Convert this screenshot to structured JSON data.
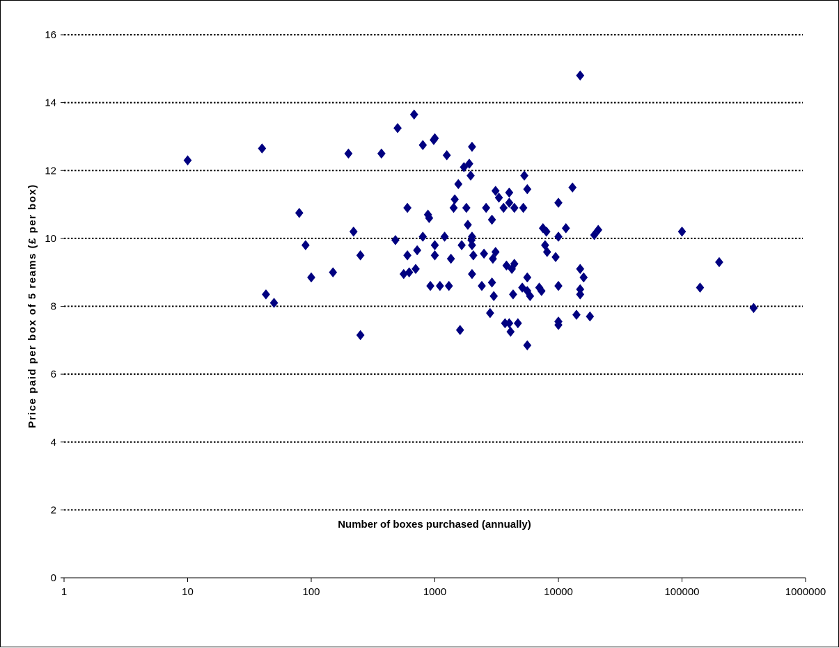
{
  "chart_data": {
    "type": "scatter",
    "xlabel": "Number of boxes purchased (annually)",
    "ylabel": "Price paid per box of 5 reams (£ per box)",
    "x_scale": "log",
    "xlim": [
      1,
      1000000
    ],
    "ylim": [
      0,
      16
    ],
    "x_ticks": [
      "1",
      "10",
      "100",
      "1000",
      "10000",
      "100000",
      "1000000"
    ],
    "y_ticks": [
      "0",
      "2",
      "4",
      "6",
      "8",
      "10",
      "12",
      "14",
      "16"
    ],
    "grid": "horizontal dotted",
    "legend": "none",
    "marker": "diamond",
    "marker_color": "#000080",
    "series": [
      {
        "points": [
          [
            10,
            12.3
          ],
          [
            40,
            12.65
          ],
          [
            43,
            8.35
          ],
          [
            50,
            8.1
          ],
          [
            80,
            10.75
          ],
          [
            90,
            9.8
          ],
          [
            100,
            8.85
          ],
          [
            150,
            9.0
          ],
          [
            200,
            12.5
          ],
          [
            220,
            10.2
          ],
          [
            250,
            7.15
          ],
          [
            250,
            9.5
          ],
          [
            370,
            12.5
          ],
          [
            480,
            9.95
          ],
          [
            500,
            13.25
          ],
          [
            560,
            8.95
          ],
          [
            600,
            10.9
          ],
          [
            600,
            9.5
          ],
          [
            620,
            9.0
          ],
          [
            680,
            13.65
          ],
          [
            700,
            9.1
          ],
          [
            720,
            9.65
          ],
          [
            800,
            12.75
          ],
          [
            800,
            10.05
          ],
          [
            880,
            10.7
          ],
          [
            900,
            10.6
          ],
          [
            920,
            8.6
          ],
          [
            980,
            12.9
          ],
          [
            1000,
            12.95
          ],
          [
            1000,
            9.8
          ],
          [
            1000,
            9.5
          ],
          [
            1100,
            8.6
          ],
          [
            1200,
            10.05
          ],
          [
            1250,
            12.45
          ],
          [
            1300,
            8.6
          ],
          [
            1350,
            9.4
          ],
          [
            1420,
            10.9
          ],
          [
            1450,
            11.15
          ],
          [
            1550,
            11.6
          ],
          [
            1600,
            7.3
          ],
          [
            1650,
            9.8
          ],
          [
            1720,
            12.1
          ],
          [
            1800,
            10.9
          ],
          [
            1850,
            10.4
          ],
          [
            1900,
            12.2
          ],
          [
            1950,
            11.85
          ],
          [
            1980,
            9.95
          ],
          [
            2000,
            12.7
          ],
          [
            2000,
            10.05
          ],
          [
            2000,
            9.8
          ],
          [
            2000,
            8.95
          ],
          [
            2050,
            9.5
          ],
          [
            2400,
            8.6
          ],
          [
            2500,
            9.55
          ],
          [
            2600,
            10.9
          ],
          [
            2800,
            7.8
          ],
          [
            2900,
            10.55
          ],
          [
            2900,
            8.7
          ],
          [
            2950,
            9.4
          ],
          [
            3000,
            8.3
          ],
          [
            3100,
            11.4
          ],
          [
            3100,
            9.6
          ],
          [
            3300,
            11.2
          ],
          [
            3600,
            10.9
          ],
          [
            3700,
            7.5
          ],
          [
            3800,
            9.2
          ],
          [
            4000,
            11.35
          ],
          [
            4000,
            11.05
          ],
          [
            4000,
            7.5
          ],
          [
            4100,
            7.25
          ],
          [
            4200,
            9.1
          ],
          [
            4300,
            8.35
          ],
          [
            4400,
            10.9
          ],
          [
            4400,
            9.25
          ],
          [
            4700,
            7.5
          ],
          [
            5100,
            8.55
          ],
          [
            5200,
            10.9
          ],
          [
            5300,
            11.85
          ],
          [
            5600,
            11.45
          ],
          [
            5600,
            8.85
          ],
          [
            5600,
            8.45
          ],
          [
            5600,
            6.85
          ],
          [
            5900,
            8.3
          ],
          [
            7000,
            8.55
          ],
          [
            7300,
            8.45
          ],
          [
            7500,
            10.3
          ],
          [
            7800,
            9.8
          ],
          [
            8000,
            10.2
          ],
          [
            8100,
            9.6
          ],
          [
            9500,
            9.45
          ],
          [
            10000,
            11.05
          ],
          [
            10000,
            10.05
          ],
          [
            10000,
            8.6
          ],
          [
            10000,
            7.55
          ],
          [
            10000,
            7.45
          ],
          [
            11500,
            10.3
          ],
          [
            13000,
            11.5
          ],
          [
            14000,
            7.75
          ],
          [
            15000,
            14.8
          ],
          [
            15000,
            9.1
          ],
          [
            15000,
            8.5
          ],
          [
            15000,
            8.35
          ],
          [
            16000,
            8.85
          ],
          [
            18000,
            7.7
          ],
          [
            19500,
            10.1
          ],
          [
            21000,
            10.25
          ],
          [
            100000,
            10.2
          ],
          [
            140000,
            8.55
          ],
          [
            200000,
            9.3
          ],
          [
            380000,
            7.95
          ]
        ]
      }
    ]
  }
}
